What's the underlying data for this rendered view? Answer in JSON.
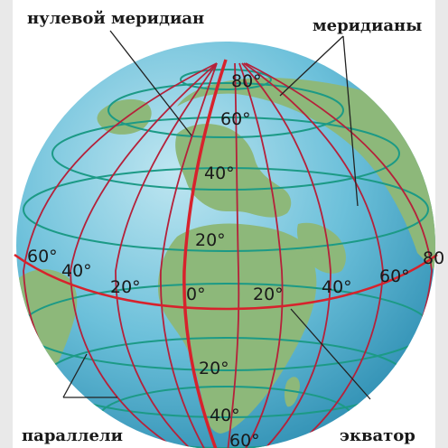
{
  "callouts": {
    "prime_meridian": "нулевой меридиан",
    "meridians": "меридианы",
    "parallels": "параллели",
    "equator": "экватор"
  },
  "latitude_labels": {
    "north_80": "80°",
    "north_60": "60°",
    "north_40": "40°",
    "north_20": "20°",
    "south_20": "20°",
    "south_40": "40°",
    "south_60": "60°"
  },
  "longitude_labels": {
    "west_60": "60°",
    "west_40": "40°",
    "west_20": "20°",
    "zero": "0°",
    "east_20": "20°",
    "east_40": "40°",
    "east_60": "60°",
    "east_80": "80"
  },
  "colors": {
    "ocean": "#5fb8d4",
    "land": "#8db87a",
    "meridian": "#b5213a",
    "parallel": "#1c9a86",
    "equator": "#d7222c",
    "prime_meridian": "#d7222c",
    "text": "#1a1a1a"
  }
}
